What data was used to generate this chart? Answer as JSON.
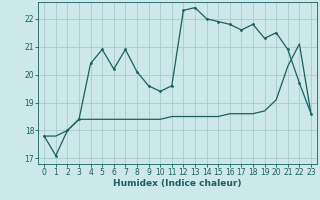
{
  "xlabel": "Humidex (Indice chaleur)",
  "ylabel": "",
  "background_color": "#cce8e8",
  "grid_color": "#aacccc",
  "line_color": "#1a6060",
  "x_values": [
    0,
    1,
    2,
    3,
    4,
    5,
    6,
    7,
    8,
    9,
    10,
    11,
    12,
    13,
    14,
    15,
    16,
    17,
    18,
    19,
    20,
    21,
    22,
    23
  ],
  "y_line1": [
    17.8,
    17.1,
    18.0,
    18.4,
    20.4,
    20.9,
    20.2,
    20.9,
    20.1,
    19.6,
    19.4,
    19.6,
    22.3,
    22.4,
    22.0,
    21.9,
    21.8,
    21.6,
    21.8,
    21.3,
    21.5,
    20.9,
    19.7,
    18.6
  ],
  "y_line2": [
    17.8,
    17.8,
    18.0,
    18.4,
    18.4,
    18.4,
    18.4,
    18.4,
    18.4,
    18.4,
    18.4,
    18.5,
    18.5,
    18.5,
    18.5,
    18.5,
    18.6,
    18.6,
    18.6,
    18.7,
    19.1,
    20.3,
    21.1,
    18.6
  ],
  "ylim": [
    16.8,
    22.6
  ],
  "xlim": [
    -0.5,
    23.5
  ],
  "yticks": [
    17,
    18,
    19,
    20,
    21,
    22
  ],
  "xticks": [
    0,
    1,
    2,
    3,
    4,
    5,
    6,
    7,
    8,
    9,
    10,
    11,
    12,
    13,
    14,
    15,
    16,
    17,
    18,
    19,
    20,
    21,
    22,
    23
  ],
  "tick_fontsize": 5.5,
  "xlabel_fontsize": 6.5,
  "marker_size": 2.0,
  "line_width": 0.9
}
